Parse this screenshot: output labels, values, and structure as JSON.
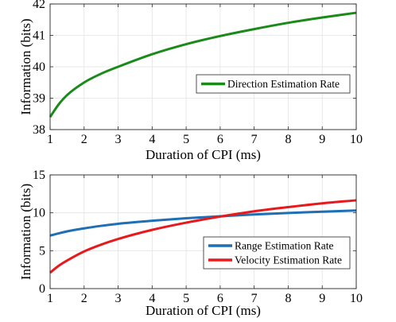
{
  "chart_data": [
    {
      "type": "line",
      "xlabel": "Duration of CPI (ms)",
      "ylabel": "Information (bits)",
      "xlim": [
        1,
        10
      ],
      "ylim": [
        38,
        42
      ],
      "xticks": [
        "1",
        "2",
        "3",
        "4",
        "5",
        "6",
        "7",
        "8",
        "9",
        "10"
      ],
      "yticks": [
        "38",
        "39",
        "40",
        "41",
        "42"
      ],
      "grid": true,
      "legend_position": "center-right",
      "series": [
        {
          "name": "Direction Estimation Rate",
          "color": "#1a8a1a",
          "x": [
            1,
            1.25,
            1.5,
            2,
            2.5,
            3,
            4,
            5,
            6,
            7,
            8,
            9,
            10
          ],
          "y": [
            38.4,
            38.8,
            39.1,
            39.5,
            39.78,
            40.0,
            40.4,
            40.72,
            40.98,
            41.2,
            41.4,
            41.57,
            41.72
          ]
        }
      ]
    },
    {
      "type": "line",
      "xlabel": "Duration of CPI (ms)",
      "ylabel": "Information (bits)",
      "xlim": [
        1,
        10
      ],
      "ylim": [
        0,
        15
      ],
      "xticks": [
        "1",
        "2",
        "3",
        "4",
        "5",
        "6",
        "7",
        "8",
        "9",
        "10"
      ],
      "yticks": [
        "0",
        "5",
        "10",
        "15"
      ],
      "grid": true,
      "legend_position": "bottom-right",
      "series": [
        {
          "name": "Range Estimation Rate",
          "color": "#1f6fb4",
          "x": [
            1,
            1.5,
            2,
            2.5,
            3,
            4,
            5,
            6,
            7,
            8,
            9,
            10
          ],
          "y": [
            7.0,
            7.55,
            7.95,
            8.28,
            8.55,
            8.95,
            9.28,
            9.55,
            9.78,
            9.98,
            10.15,
            10.3
          ]
        },
        {
          "name": "Velocity Estimation Rate",
          "color": "#e8191c",
          "x": [
            1,
            1.25,
            1.5,
            2,
            2.5,
            3,
            4,
            5,
            6,
            7,
            8,
            9,
            10
          ],
          "y": [
            2.1,
            3.0,
            3.7,
            4.9,
            5.8,
            6.55,
            7.75,
            8.7,
            9.5,
            10.2,
            10.75,
            11.25,
            11.65
          ]
        }
      ]
    }
  ]
}
